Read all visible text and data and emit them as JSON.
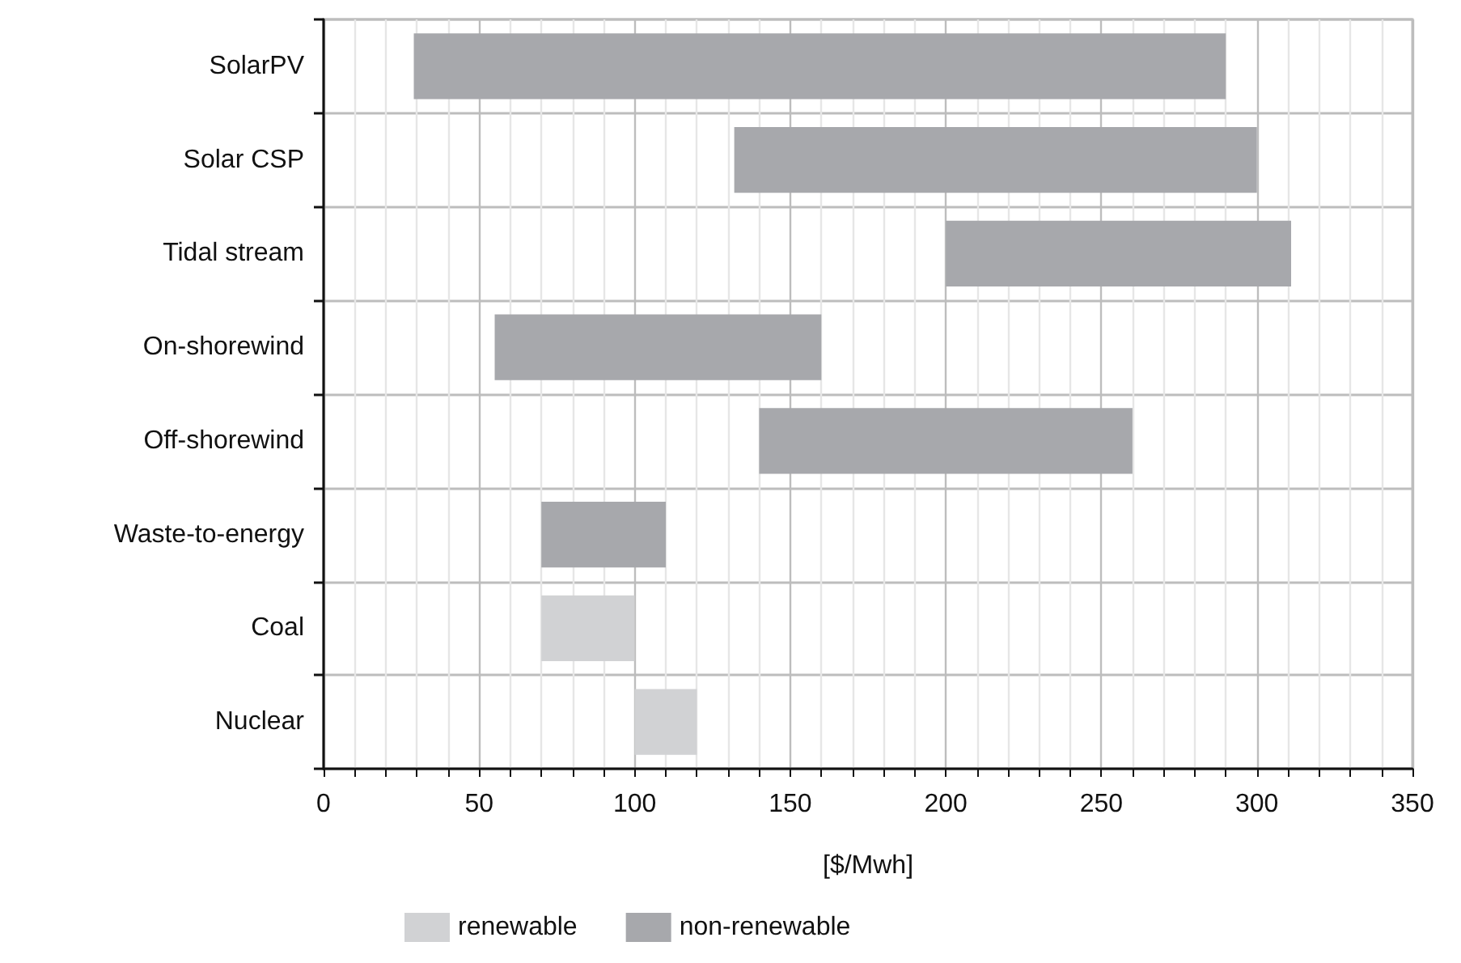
{
  "chart_data": {
    "type": "bar",
    "orientation": "horizontal",
    "xlabel": "[$/Mwh]",
    "categories": [
      "SolarPV",
      "Solar CSP",
      "Tidal stream",
      "On-shorewind",
      "Off-shorewind",
      "Waste-to-energy",
      "Coal",
      "Nuclear"
    ],
    "series": [
      {
        "name": "renewable",
        "color": "#d1d2d4",
        "base": [
          null,
          null,
          null,
          null,
          null,
          null,
          70,
          100
        ],
        "values": [
          null,
          null,
          null,
          null,
          null,
          null,
          30,
          20
        ]
      },
      {
        "name": "non-renewable",
        "color": "#a7a8ac",
        "base": [
          29,
          132,
          200,
          55,
          140,
          70,
          null,
          null
        ],
        "values": [
          261,
          168,
          111,
          105,
          120,
          40,
          null,
          null
        ]
      }
    ],
    "xlim": [
      0,
      350
    ],
    "xticks": [
      0,
      {
        "value": 10,
        "label": null
      },
      {
        "value": 20,
        "label": null
      },
      {
        "value": 30,
        "label": null
      },
      {
        "value": 40,
        "label": null
      },
      50,
      {
        "value": 60,
        "label": null
      },
      {
        "value": 70,
        "label": null
      },
      {
        "value": 80,
        "label": null
      },
      {
        "value": 90,
        "label": null
      },
      100,
      {
        "value": 110,
        "label": null
      },
      {
        "value": 120,
        "label": null
      },
      {
        "value": 130,
        "label": null
      },
      {
        "value": 140,
        "label": null
      },
      150,
      {
        "value": 160,
        "label": null
      },
      {
        "value": 170,
        "label": null
      },
      {
        "value": 180,
        "label": null
      },
      {
        "value": 190,
        "label": null
      },
      200,
      {
        "value": 210,
        "label": null
      },
      {
        "value": 220,
        "label": null
      },
      {
        "value": 230,
        "label": null
      },
      {
        "value": 240,
        "label": null
      },
      250,
      {
        "value": 260,
        "label": null
      },
      {
        "value": 270,
        "label": null
      },
      {
        "value": 280,
        "label": null
      },
      {
        "value": 290,
        "label": null
      },
      300,
      {
        "value": 310,
        "label": null
      },
      {
        "value": 320,
        "label": null
      },
      {
        "value": 330,
        "label": null
      },
      {
        "value": 340,
        "label": null
      },
      350
    ],
    "grid": true,
    "legend": "bottom"
  }
}
